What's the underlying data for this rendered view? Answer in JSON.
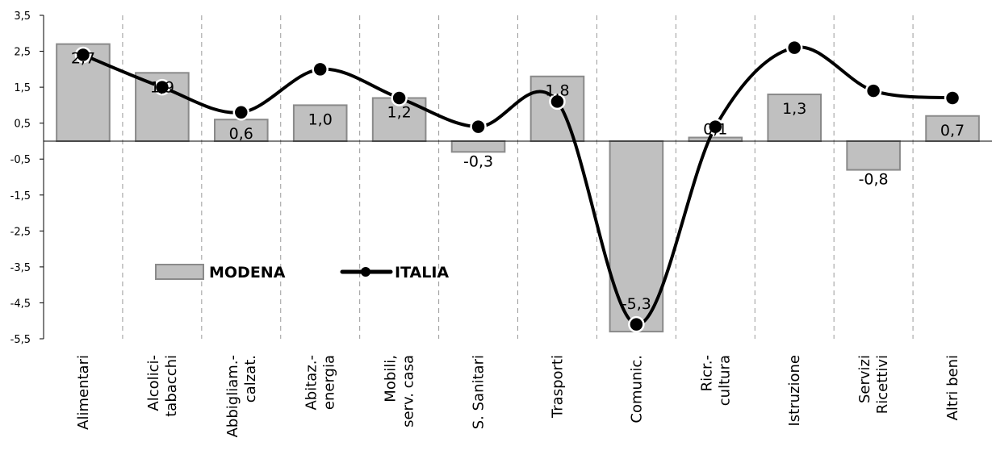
{
  "chart_data": {
    "type": "bar",
    "categories": [
      [
        "Alimentari"
      ],
      [
        "Alcolici-",
        "tabacchi"
      ],
      [
        "Abbigliam.-",
        "calzat."
      ],
      [
        "Abitaz.-",
        "energia"
      ],
      [
        "Mobili,",
        "serv. casa"
      ],
      [
        "S. Sanitari"
      ],
      [
        "Trasporti"
      ],
      [
        "Comunic."
      ],
      [
        "Ricr.-",
        "cultura"
      ],
      [
        "Istruzione"
      ],
      [
        "Servizi",
        "Ricettivi"
      ],
      [
        "Altri beni"
      ]
    ],
    "series": [
      {
        "name": "MODENA",
        "type": "bar",
        "color": "#c0c0c0",
        "values": [
          2.7,
          1.9,
          0.6,
          1.0,
          1.2,
          -0.3,
          1.8,
          -5.3,
          0.1,
          1.3,
          -0.8,
          0.7
        ],
        "labels": [
          "2,7",
          "1,9",
          "0,6",
          "1,0",
          "1,2",
          "-0,3",
          "1,8",
          "-5,3",
          "0,1",
          "1,3",
          "-0,8",
          "0,7"
        ]
      },
      {
        "name": "ITALIA",
        "type": "line",
        "color": "#000000",
        "values": [
          2.4,
          1.5,
          0.8,
          2.0,
          1.2,
          0.4,
          1.1,
          -5.1,
          0.4,
          2.6,
          1.4,
          1.2
        ]
      }
    ],
    "y_ticks": [
      3.5,
      2.5,
      1.5,
      0.5,
      -0.5,
      -1.5,
      -2.5,
      -3.5,
      -4.5,
      -5.5
    ],
    "y_tick_labels": [
      "3,5",
      "2,5",
      "1,5",
      "0,5",
      "-0,5",
      "-1,5",
      "-2,5",
      "-3,5",
      "-4,5",
      "-5,5"
    ],
    "ylim": [
      -5.5,
      3.5
    ],
    "grid": "vertical dashed separators",
    "legend_position": "lower-left inside plot"
  }
}
